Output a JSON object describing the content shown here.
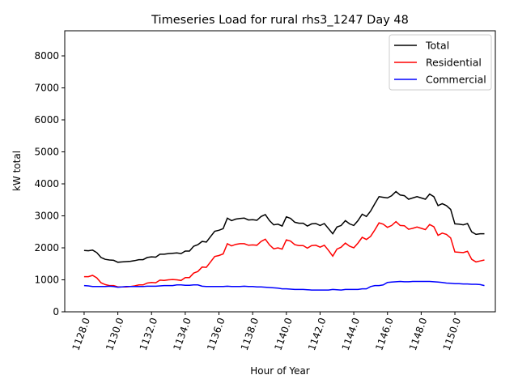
{
  "chart_data": {
    "type": "line",
    "title": "Timeseries Load for rural rhs3_1247  Day 48",
    "xlabel": "Hour of Year",
    "ylabel": "kW total",
    "xlim": [
      1126.85,
      1152.4
    ],
    "ylim": [
      0,
      8785
    ],
    "xticks": [
      1128,
      1130,
      1132,
      1134,
      1136,
      1138,
      1140,
      1142,
      1144,
      1146,
      1148,
      1150
    ],
    "xtick_labels": [
      "1128.0",
      "1130.0",
      "1132.0",
      "1134.0",
      "1136.0",
      "1138.0",
      "1140.0",
      "1142.0",
      "1144.0",
      "1146.0",
      "1148.0",
      "1150.0"
    ],
    "yticks": [
      0,
      1000,
      2000,
      3000,
      4000,
      5000,
      6000,
      7000,
      8000
    ],
    "ytick_labels": [
      "0",
      "1000",
      "2000",
      "3000",
      "4000",
      "5000",
      "6000",
      "7000",
      "8000"
    ],
    "grid": false,
    "legend_position": "top-right",
    "x_start": 1128,
    "x_step": 0.25,
    "series": [
      {
        "name": "Total",
        "color": "#000000",
        "values": [
          1920,
          1910,
          1930,
          1850,
          1700,
          1640,
          1620,
          1610,
          1550,
          1560,
          1570,
          1580,
          1600,
          1630,
          1630,
          1700,
          1720,
          1710,
          1800,
          1800,
          1820,
          1830,
          1840,
          1820,
          1900,
          1900,
          2050,
          2100,
          2200,
          2180,
          2350,
          2520,
          2550,
          2600,
          2930,
          2850,
          2900,
          2920,
          2930,
          2870,
          2880,
          2860,
          2980,
          3040,
          2850,
          2720,
          2740,
          2680,
          2970,
          2920,
          2800,
          2770,
          2770,
          2680,
          2750,
          2760,
          2700,
          2760,
          2600,
          2440,
          2650,
          2700,
          2850,
          2750,
          2700,
          2850,
          3050,
          2980,
          3150,
          3380,
          3600,
          3580,
          3560,
          3630,
          3760,
          3650,
          3630,
          3520,
          3560,
          3600,
          3560,
          3520,
          3680,
          3600,
          3320,
          3380,
          3320,
          3200,
          2750,
          2740,
          2720,
          2760,
          2500,
          2420,
          2440,
          2440
        ]
      },
      {
        "name": "Residential",
        "color": "#ff0000",
        "values": [
          1100,
          1100,
          1140,
          1060,
          910,
          850,
          820,
          820,
          780,
          780,
          780,
          790,
          810,
          840,
          840,
          900,
          920,
          910,
          990,
          980,
          1000,
          1010,
          1000,
          980,
          1070,
          1070,
          1210,
          1260,
          1400,
          1390,
          1560,
          1730,
          1760,
          1810,
          2130,
          2060,
          2110,
          2130,
          2130,
          2080,
          2090,
          2080,
          2200,
          2270,
          2090,
          1970,
          2000,
          1960,
          2250,
          2210,
          2100,
          2070,
          2070,
          1990,
          2070,
          2080,
          2020,
          2080,
          1920,
          1740,
          1960,
          2020,
          2150,
          2050,
          2000,
          2150,
          2330,
          2260,
          2360,
          2560,
          2780,
          2740,
          2640,
          2700,
          2820,
          2700,
          2690,
          2580,
          2610,
          2650,
          2610,
          2570,
          2730,
          2660,
          2390,
          2460,
          2420,
          2310,
          1870,
          1860,
          1850,
          1890,
          1640,
          1560,
          1590,
          1620
        ]
      },
      {
        "name": "Commercial",
        "color": "#0000ff",
        "values": [
          820,
          810,
          790,
          790,
          790,
          790,
          800,
          790,
          770,
          780,
          790,
          790,
          790,
          790,
          790,
          800,
          800,
          800,
          810,
          820,
          820,
          820,
          840,
          840,
          830,
          830,
          840,
          840,
          800,
          790,
          790,
          790,
          790,
          790,
          800,
          790,
          790,
          790,
          800,
          790,
          790,
          780,
          780,
          770,
          760,
          750,
          740,
          720,
          720,
          710,
          700,
          700,
          700,
          690,
          680,
          680,
          680,
          680,
          680,
          700,
          690,
          680,
          700,
          700,
          700,
          700,
          720,
          720,
          790,
          820,
          820,
          840,
          920,
          930,
          940,
          950,
          940,
          940,
          950,
          950,
          950,
          950,
          950,
          940,
          930,
          920,
          900,
          890,
          880,
          880,
          870,
          870,
          860,
          860,
          850,
          820
        ]
      }
    ]
  }
}
